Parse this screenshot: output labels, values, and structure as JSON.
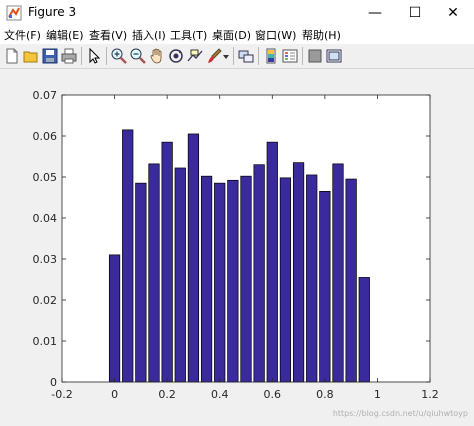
{
  "window": {
    "title": "Figure 3",
    "minimize_glyph": "—",
    "maximize_glyph": "☐",
    "close_glyph": "✕"
  },
  "menu": [
    {
      "label": "文件(F)"
    },
    {
      "label": "编辑(E)"
    },
    {
      "label": "查看(V)"
    },
    {
      "label": "插入(I)"
    },
    {
      "label": "工具(T)"
    },
    {
      "label": "桌面(D)"
    },
    {
      "label": "窗口(W)"
    },
    {
      "label": "帮助(H)"
    }
  ],
  "toolbar": {
    "icons": [
      "new-figure-icon",
      "open-file-icon",
      "save-icon",
      "print-icon",
      "select-arrow-icon",
      "zoom-in-icon",
      "zoom-out-icon",
      "pan-hand-icon",
      "rotate-3d-icon",
      "data-cursor-icon",
      "brush-icon",
      "dropdown-arrow-icon",
      "link-plot-icon",
      "colorbar-icon",
      "legend-icon",
      "hide-plot-tools-icon",
      "show-plot-tools-icon"
    ]
  },
  "watermark": "https://blog.csdn.net/u/qiuhwtoyp",
  "colors": {
    "bar_fill": "#3a2b9c",
    "bar_edge": "#000000",
    "axes_bg": "#ffffff",
    "figure_bg": "#f0f0f0"
  },
  "chart_data": {
    "type": "bar",
    "title": "",
    "xlabel": "",
    "ylabel": "",
    "xlim": [
      -0.2,
      1.2
    ],
    "ylim": [
      0,
      0.07
    ],
    "xticks": [
      -0.2,
      0,
      0.2,
      0.4,
      0.6,
      0.8,
      1,
      1.2
    ],
    "xtick_labels": [
      "-0.2",
      "0",
      "0.2",
      "0.4",
      "0.6",
      "0.8",
      "1",
      "1.2"
    ],
    "yticks": [
      0,
      0.01,
      0.02,
      0.03,
      0.04,
      0.05,
      0.06,
      0.07
    ],
    "ytick_labels": [
      "0",
      "0.01",
      "0.02",
      "0.03",
      "0.04",
      "0.05",
      "0.06",
      "0.07"
    ],
    "bar_width": 0.04,
    "x": [
      0,
      0.05,
      0.1,
      0.15,
      0.2,
      0.25,
      0.3,
      0.35,
      0.4,
      0.45,
      0.5,
      0.55,
      0.6,
      0.65,
      0.7,
      0.75,
      0.8,
      0.85,
      0.9,
      0.95,
      1.0
    ],
    "values": [
      0.031,
      0.0615,
      0.0485,
      0.0532,
      0.0585,
      0.0522,
      0.0605,
      0.0502,
      0.0485,
      0.0492,
      0.0502,
      0.053,
      0.0585,
      0.0498,
      0.0535,
      0.0505,
      0.0465,
      0.0532,
      0.0495,
      0.0255,
      0
    ],
    "grid": false,
    "legend": "none"
  }
}
